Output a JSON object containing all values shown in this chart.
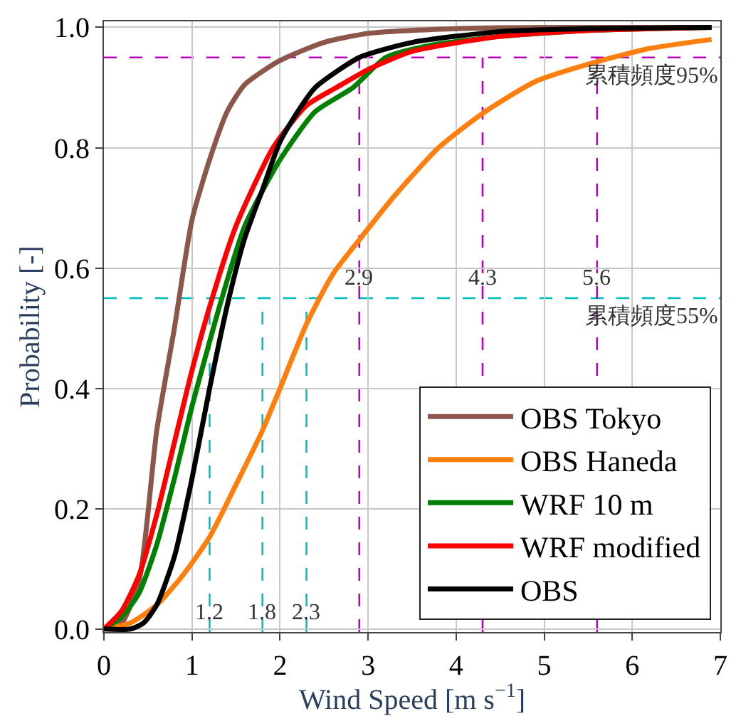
{
  "chart_data": {
    "type": "line",
    "xlabel": "Wind Speed [m s$^{−1}$]",
    "ylabel": "Probability [-]",
    "xlim": [
      0,
      7
    ],
    "ylim": [
      -0.005,
      1.01
    ],
    "xticks": [
      0,
      1,
      2,
      3,
      4,
      5,
      6,
      7
    ],
    "yticks": [
      {
        "value": 0,
        "label": "0.0"
      },
      {
        "value": 0.2,
        "label": "0.2"
      },
      {
        "value": 0.4,
        "label": "0.4"
      },
      {
        "value": 0.6,
        "label": "0.6"
      },
      {
        "value": 0.8,
        "label": "0.8"
      },
      {
        "value": 1,
        "label": "1.0"
      }
    ],
    "grid": true,
    "legend": "bottom right",
    "line_style": "solid",
    "marker": "none",
    "series": [
      {
        "name": "OBS Tokyo",
        "color": "#8c564b",
        "x": [
          0,
          0.2,
          0.4,
          0.6,
          0.8,
          1.0,
          1.2,
          1.4,
          1.6,
          2.0,
          2.5,
          3,
          4,
          5,
          6.9
        ],
        "values": [
          0,
          0.01,
          0.08,
          0.33,
          0.5,
          0.68,
          0.78,
          0.86,
          0.905,
          0.945,
          0.975,
          0.99,
          0.998,
          1,
          1
        ]
      },
      {
        "name": "OBS Haneda",
        "color": "#ff7f0e",
        "x": [
          0,
          0.3,
          0.6,
          0.9,
          1.2,
          1.5,
          1.8,
          2.0,
          2.3,
          2.6,
          2.9,
          3.3,
          3.8,
          4.3,
          4.9,
          5.6,
          6.2,
          6.9
        ],
        "values": [
          0,
          0.01,
          0.04,
          0.09,
          0.153,
          0.24,
          0.33,
          0.4,
          0.507,
          0.59,
          0.647,
          0.72,
          0.8,
          0.857,
          0.91,
          0.943,
          0.965,
          0.98
        ]
      },
      {
        "name": "WRF 10 m",
        "color": "#008000",
        "x": [
          0,
          0.2,
          0.4,
          0.6,
          0.8,
          1.0,
          1.34,
          1.6,
          2.0,
          2.4,
          2.83,
          3.2,
          3.7,
          4.5,
          5.5,
          6.9
        ],
        "values": [
          0,
          0.02,
          0.06,
          0.14,
          0.25,
          0.37,
          0.55,
          0.67,
          0.78,
          0.86,
          0.9,
          0.95,
          0.97,
          0.985,
          0.995,
          1.0
        ]
      },
      {
        "name": "WRF modified",
        "color": "#ff0000",
        "x": [
          0,
          0.2,
          0.4,
          0.6,
          0.8,
          1.0,
          1.23,
          1.5,
          1.92,
          2.3,
          2.64,
          3.0,
          3.5,
          4.5,
          5.5,
          6.9
        ],
        "values": [
          0,
          0.03,
          0.09,
          0.19,
          0.31,
          0.43,
          0.55,
          0.67,
          0.8,
          0.87,
          0.9,
          0.93,
          0.96,
          0.985,
          0.995,
          1.0
        ]
      },
      {
        "name": "OBS",
        "color": "#000000",
        "x": [
          0,
          0.3,
          0.45,
          0.6,
          0.8,
          1.0,
          1.2,
          1.42,
          1.6,
          1.8,
          2.0,
          2.2,
          2.4,
          2.9,
          3.5,
          4.5,
          5.5,
          6.9
        ],
        "values": [
          0,
          0,
          0.01,
          0.04,
          0.12,
          0.25,
          0.4,
          0.55,
          0.65,
          0.73,
          0.81,
          0.86,
          0.9,
          0.95,
          0.975,
          0.993,
          0.998,
          1.0
        ]
      }
    ],
    "ref_lines": [
      {
        "axis": "y",
        "value": 0.95,
        "label": "累積頻度95%",
        "color": "#c000c0",
        "line_style": "dashed"
      },
      {
        "axis": "y",
        "value": 0.55,
        "label": "累積頻度55%",
        "color": "#00bfbf",
        "line_style": "dashed"
      },
      {
        "axis": "x",
        "value": 1.2,
        "label": "1.2",
        "color": "#00bfbf",
        "line_style": "dashed"
      },
      {
        "axis": "x",
        "value": 1.8,
        "label": "1.8",
        "color": "#00bfbf",
        "line_style": "dashed"
      },
      {
        "axis": "x",
        "value": 2.3,
        "label": "2.3",
        "color": "#00bfbf",
        "line_style": "dashed"
      },
      {
        "axis": "x",
        "value": 2.9,
        "label": "2.9",
        "color": "#c000c0",
        "line_style": "dashed"
      },
      {
        "axis": "x",
        "value": 4.3,
        "label": "4.3",
        "color": "#c000c0",
        "line_style": "dashed"
      },
      {
        "axis": "x",
        "value": 5.6,
        "label": "5.6",
        "color": "#c000c0",
        "line_style": "dashed"
      }
    ]
  }
}
